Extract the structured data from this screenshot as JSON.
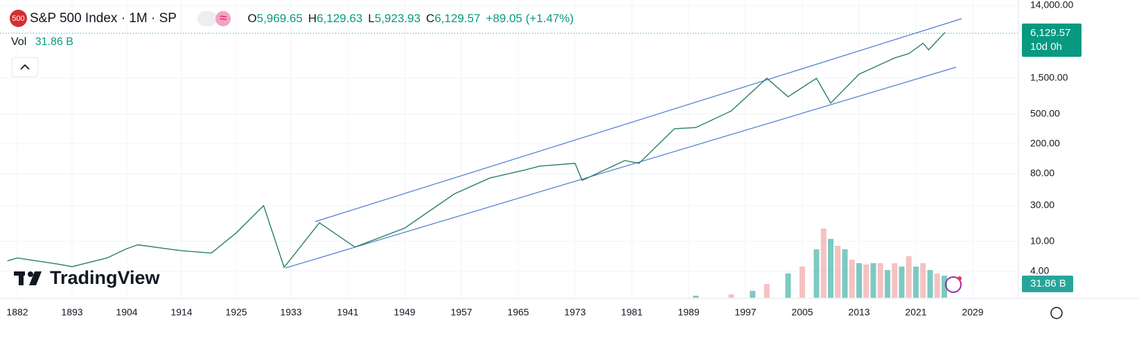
{
  "header": {
    "icon": "500",
    "title": "S&P 500 Index · 1M · SP",
    "open_label": "O",
    "open": "5,969.65",
    "high_label": "H",
    "high": "6,129.63",
    "low_label": "L",
    "low": "5,923.93",
    "close_label": "C",
    "close": "6,129.57",
    "change": "+89.05 (+1.47%)",
    "vol_label": "Vol",
    "vol": "31.86 B",
    "toggle": "≈"
  },
  "price_badge": {
    "price": "6,129.57",
    "countdown": "10d 0h"
  },
  "volume_badge": "31.86 B",
  "logo": "TradingView",
  "chart_data": {
    "type": "line",
    "log_scale": true,
    "grid": true,
    "x": [
      1880,
      1882,
      1890,
      1893,
      1900,
      1904,
      1906,
      1914,
      1920,
      1925,
      1929,
      1932,
      1937,
      1942,
      1949,
      1956,
      1961,
      1966,
      1968,
      1973,
      1974,
      1980,
      1982,
      1987,
      1990,
      1995,
      2000,
      2003,
      2007,
      2009,
      2013,
      2018,
      2020,
      2022,
      2022.8,
      2025.1
    ],
    "series": [
      {
        "name": "S&P 500 Index",
        "color": "#2a7f62",
        "values": [
          5.5,
          6,
          5,
          4.6,
          6,
          8,
          9,
          7.5,
          7,
          13,
          30,
          4.5,
          17.7,
          8.4,
          15,
          43,
          70,
          90,
          101,
          110,
          65,
          120,
          110,
          318,
          330,
          550,
          1500,
          850,
          1500,
          700,
          1700,
          2800,
          3200,
          4400,
          3600,
          6130
        ]
      },
      {
        "name": "Vol",
        "color": "#26a69a",
        "axis": "y2",
        "x": [
          1990,
          1995,
          1998,
          2000,
          2003,
          2005,
          2007,
          2008,
          2009,
          2010,
          2011,
          2012,
          2013,
          2014,
          2015,
          2016,
          2017,
          2018,
          2019,
          2020,
          2021,
          2022,
          2023,
          2024,
          2025
        ],
        "values": [
          3,
          5,
          10,
          20,
          35,
          45,
          70,
          100,
          85,
          75,
          70,
          55,
          50,
          48,
          50,
          50,
          40,
          50,
          45,
          60,
          45,
          50,
          40,
          35,
          31.86
        ]
      }
    ],
    "ylim": [
      1.77,
      16600
    ],
    "yticks": [
      {
        "value": 4,
        "label": "4.00"
      },
      {
        "value": 10,
        "label": "10.00"
      },
      {
        "value": 30,
        "label": "30.00"
      },
      {
        "value": 80,
        "label": "80.00"
      },
      {
        "value": 200,
        "label": "200.00"
      },
      {
        "value": 500,
        "label": "500.00"
      },
      {
        "value": 1500,
        "label": "1,500.00"
      },
      {
        "value": 14000,
        "label": "14,000.00"
      }
    ],
    "y2lim": [
      0,
      130
    ],
    "xticks": [
      1882,
      1893,
      1904,
      1914,
      1925,
      1933,
      1941,
      1949,
      1957,
      1965,
      1973,
      1981,
      1989,
      1997,
      2005,
      2013,
      2021,
      2029
    ]
  }
}
